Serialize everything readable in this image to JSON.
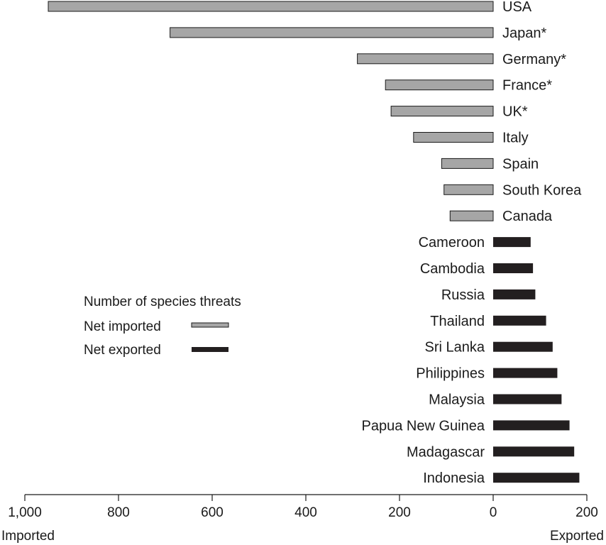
{
  "chart_data": {
    "type": "bar",
    "orientation": "horizontal",
    "xlim": [
      -1000,
      200
    ],
    "x_ticks": [
      -1000,
      -800,
      -600,
      -400,
      -200,
      0,
      200
    ],
    "x_tick_labels": [
      "1,000",
      "800",
      "600",
      "400",
      "200",
      "0",
      "200"
    ],
    "x_left_label": "Imported",
    "x_right_label": "Exported",
    "categories": [
      "USA",
      "Japan*",
      "Germany*",
      "France*",
      "UK*",
      "Italy",
      "Spain",
      "South Korea",
      "Canada",
      "Cameroon",
      "Cambodia",
      "Russia",
      "Thailand",
      "Sri Lanka",
      "Philippines",
      "Malaysia",
      "Papua New Guinea",
      "Madagascar",
      "Indonesia"
    ],
    "series": [
      {
        "name": "Net imported",
        "color": "#a6a6a6",
        "values": [
          -950,
          -690,
          -290,
          -230,
          -218,
          -170,
          -110,
          -105,
          -92,
          null,
          null,
          null,
          null,
          null,
          null,
          null,
          null,
          null,
          null
        ]
      },
      {
        "name": "Net exported",
        "color": "#231f20",
        "values": [
          null,
          null,
          null,
          null,
          null,
          null,
          null,
          null,
          null,
          80,
          85,
          90,
          113,
          127,
          137,
          146,
          163,
          173,
          184
        ]
      }
    ],
    "legend": {
      "title": "Number of species threats",
      "placement": "center-left",
      "items": [
        "Net imported",
        "Net exported"
      ]
    },
    "grid": false
  }
}
